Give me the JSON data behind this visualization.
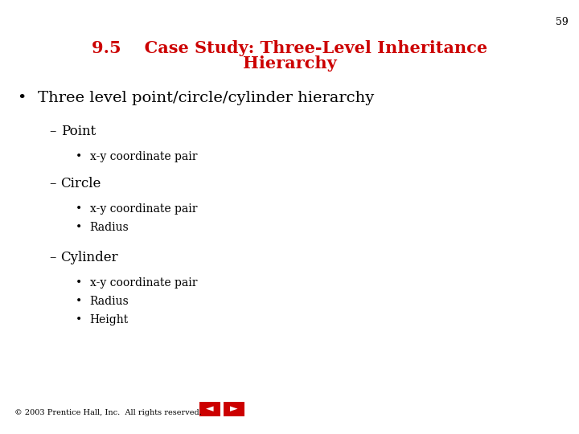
{
  "title_number": "9.5",
  "title_line1": "9.5    Case Study: Three-Level Inheritance",
  "title_line2": "Hierarchy",
  "title_color": "#cc0000",
  "slide_number": "59",
  "background_color": "#ffffff",
  "footer_text": "© 2003 Prentice Hall, Inc.  All rights reserved.",
  "bullet_main": "Three level point/circle/cylinder hierarchy",
  "sub_items": [
    {
      "label": "Point",
      "children": [
        "x-y coordinate pair"
      ]
    },
    {
      "label": "Circle",
      "children": [
        "x-y coordinate pair",
        "Radius"
      ]
    },
    {
      "label": "Cylinder",
      "children": [
        "x-y coordinate pair",
        "Radius",
        "Height"
      ]
    }
  ],
  "text_color": "#000000",
  "font_family": "DejaVu Serif"
}
